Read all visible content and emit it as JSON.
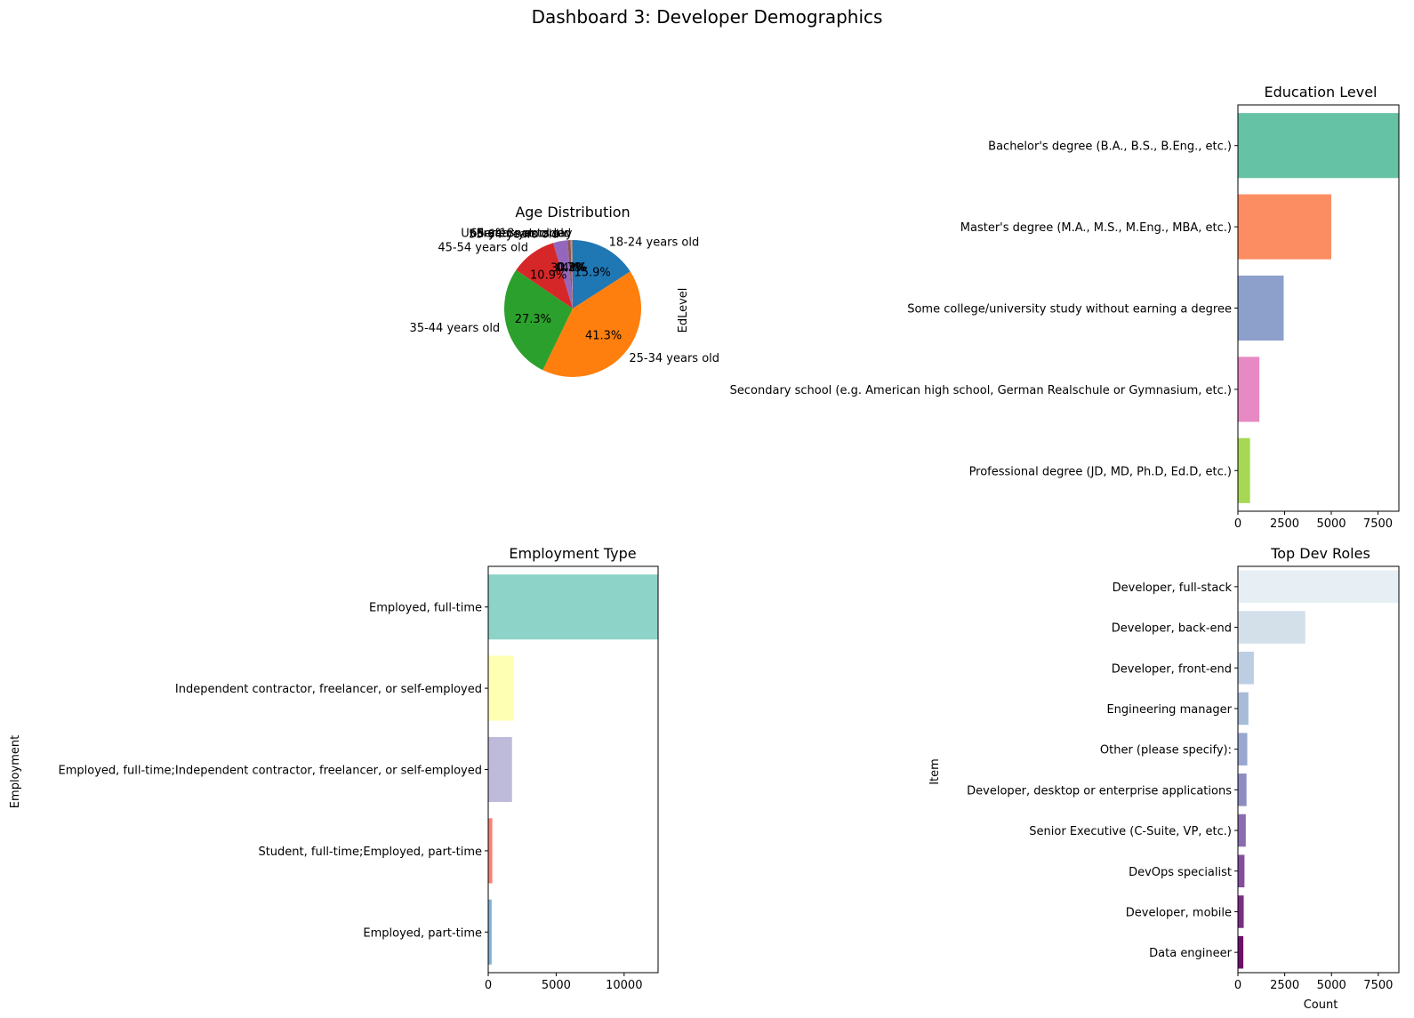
{
  "suptitle": "Dashboard 3: Developer Demographics",
  "chart_data": [
    {
      "type": "pie",
      "title": "Age Distribution",
      "slices": [
        {
          "label": "18-24 years old",
          "value": 15.9,
          "pct_label": "15.9%",
          "color": "#1f77b4"
        },
        {
          "label": "25-34 years old",
          "value": 41.3,
          "pct_label": "41.3%",
          "color": "#ff7f0e"
        },
        {
          "label": "35-44 years old",
          "value": 27.3,
          "pct_label": "27.3%",
          "color": "#2ca02c"
        },
        {
          "label": "45-54 years old",
          "value": 10.9,
          "pct_label": "10.9%",
          "color": "#d62728"
        },
        {
          "label": "55-64 years old",
          "value": 3.4,
          "pct_label": "3.4%",
          "color": "#9467bd"
        },
        {
          "label": "65 years or older",
          "value": 0.7,
          "pct_label": "0.7%",
          "color": "#8c564b"
        },
        {
          "label": "Under 18 years old",
          "value": 0.3,
          "pct_label": "0.3%",
          "color": "#e377c2"
        },
        {
          "label": "Prefer not to say",
          "value": 0.2,
          "pct_label": "0.2%",
          "color": "#7f7f7f"
        }
      ],
      "start_angle_deg": 90,
      "direction": "clockwise"
    },
    {
      "type": "bar",
      "orientation": "horizontal",
      "title": "Education Level",
      "ylabel": "EdLevel",
      "xlabel": "",
      "categories": [
        "Bachelor's degree (B.A., B.S., B.Eng., etc.)",
        "Master's degree (M.A., M.S., M.Eng., MBA, etc.)",
        "Some college/university study without earning a degree",
        "Secondary school (e.g. American high school, German Realschule or Gymnasium, etc.)",
        "Professional degree (JD, MD, Ph.D, Ed.D, etc.)"
      ],
      "values": [
        8620,
        5000,
        2450,
        1150,
        650
      ],
      "colors": [
        "#66c2a5",
        "#fc8d62",
        "#8da0cb",
        "#e78ac3",
        "#a6d854"
      ],
      "xlim": [
        0,
        8620
      ],
      "xticks": [
        0,
        2500,
        5000,
        7500
      ]
    },
    {
      "type": "bar",
      "orientation": "horizontal",
      "title": "Employment Type",
      "ylabel": "Employment",
      "xlabel": "",
      "categories": [
        "Employed, full-time",
        "Independent contractor, freelancer, or self-employed",
        "Employed, full-time;Independent contractor, freelancer, or self-employed",
        "Student, full-time;Employed, part-time",
        "Employed, part-time"
      ],
      "values": [
        12500,
        1900,
        1750,
        300,
        250
      ],
      "colors": [
        "#8dd3c7",
        "#ffffb3",
        "#bebada",
        "#fb8072",
        "#80b1d3"
      ],
      "xlim": [
        0,
        12500
      ],
      "xticks": [
        0,
        5000,
        10000
      ]
    },
    {
      "type": "bar",
      "orientation": "horizontal",
      "title": "Top Dev Roles",
      "ylabel": "Item",
      "xlabel": "Count",
      "categories": [
        "Developer, full-stack",
        "Developer, back-end",
        "Developer, front-end",
        "Engineering manager",
        "Other (please specify):",
        "Developer, desktop or enterprise applications",
        "Senior Executive (C-Suite, VP, etc.)",
        "DevOps specialist",
        "Developer, mobile",
        "Data engineer"
      ],
      "values": [
        8600,
        3600,
        850,
        560,
        500,
        460,
        420,
        350,
        310,
        290
      ],
      "colors": [
        "#e7eff4",
        "#d3e0ea",
        "#bccee2",
        "#a6bcd7",
        "#98a8cf",
        "#8d8dc1",
        "#8a6db0",
        "#854d9e",
        "#7a2b84",
        "#6b0f6b"
      ],
      "xlim": [
        0,
        8600
      ],
      "xticks": [
        0,
        2500,
        5000,
        7500
      ]
    }
  ]
}
